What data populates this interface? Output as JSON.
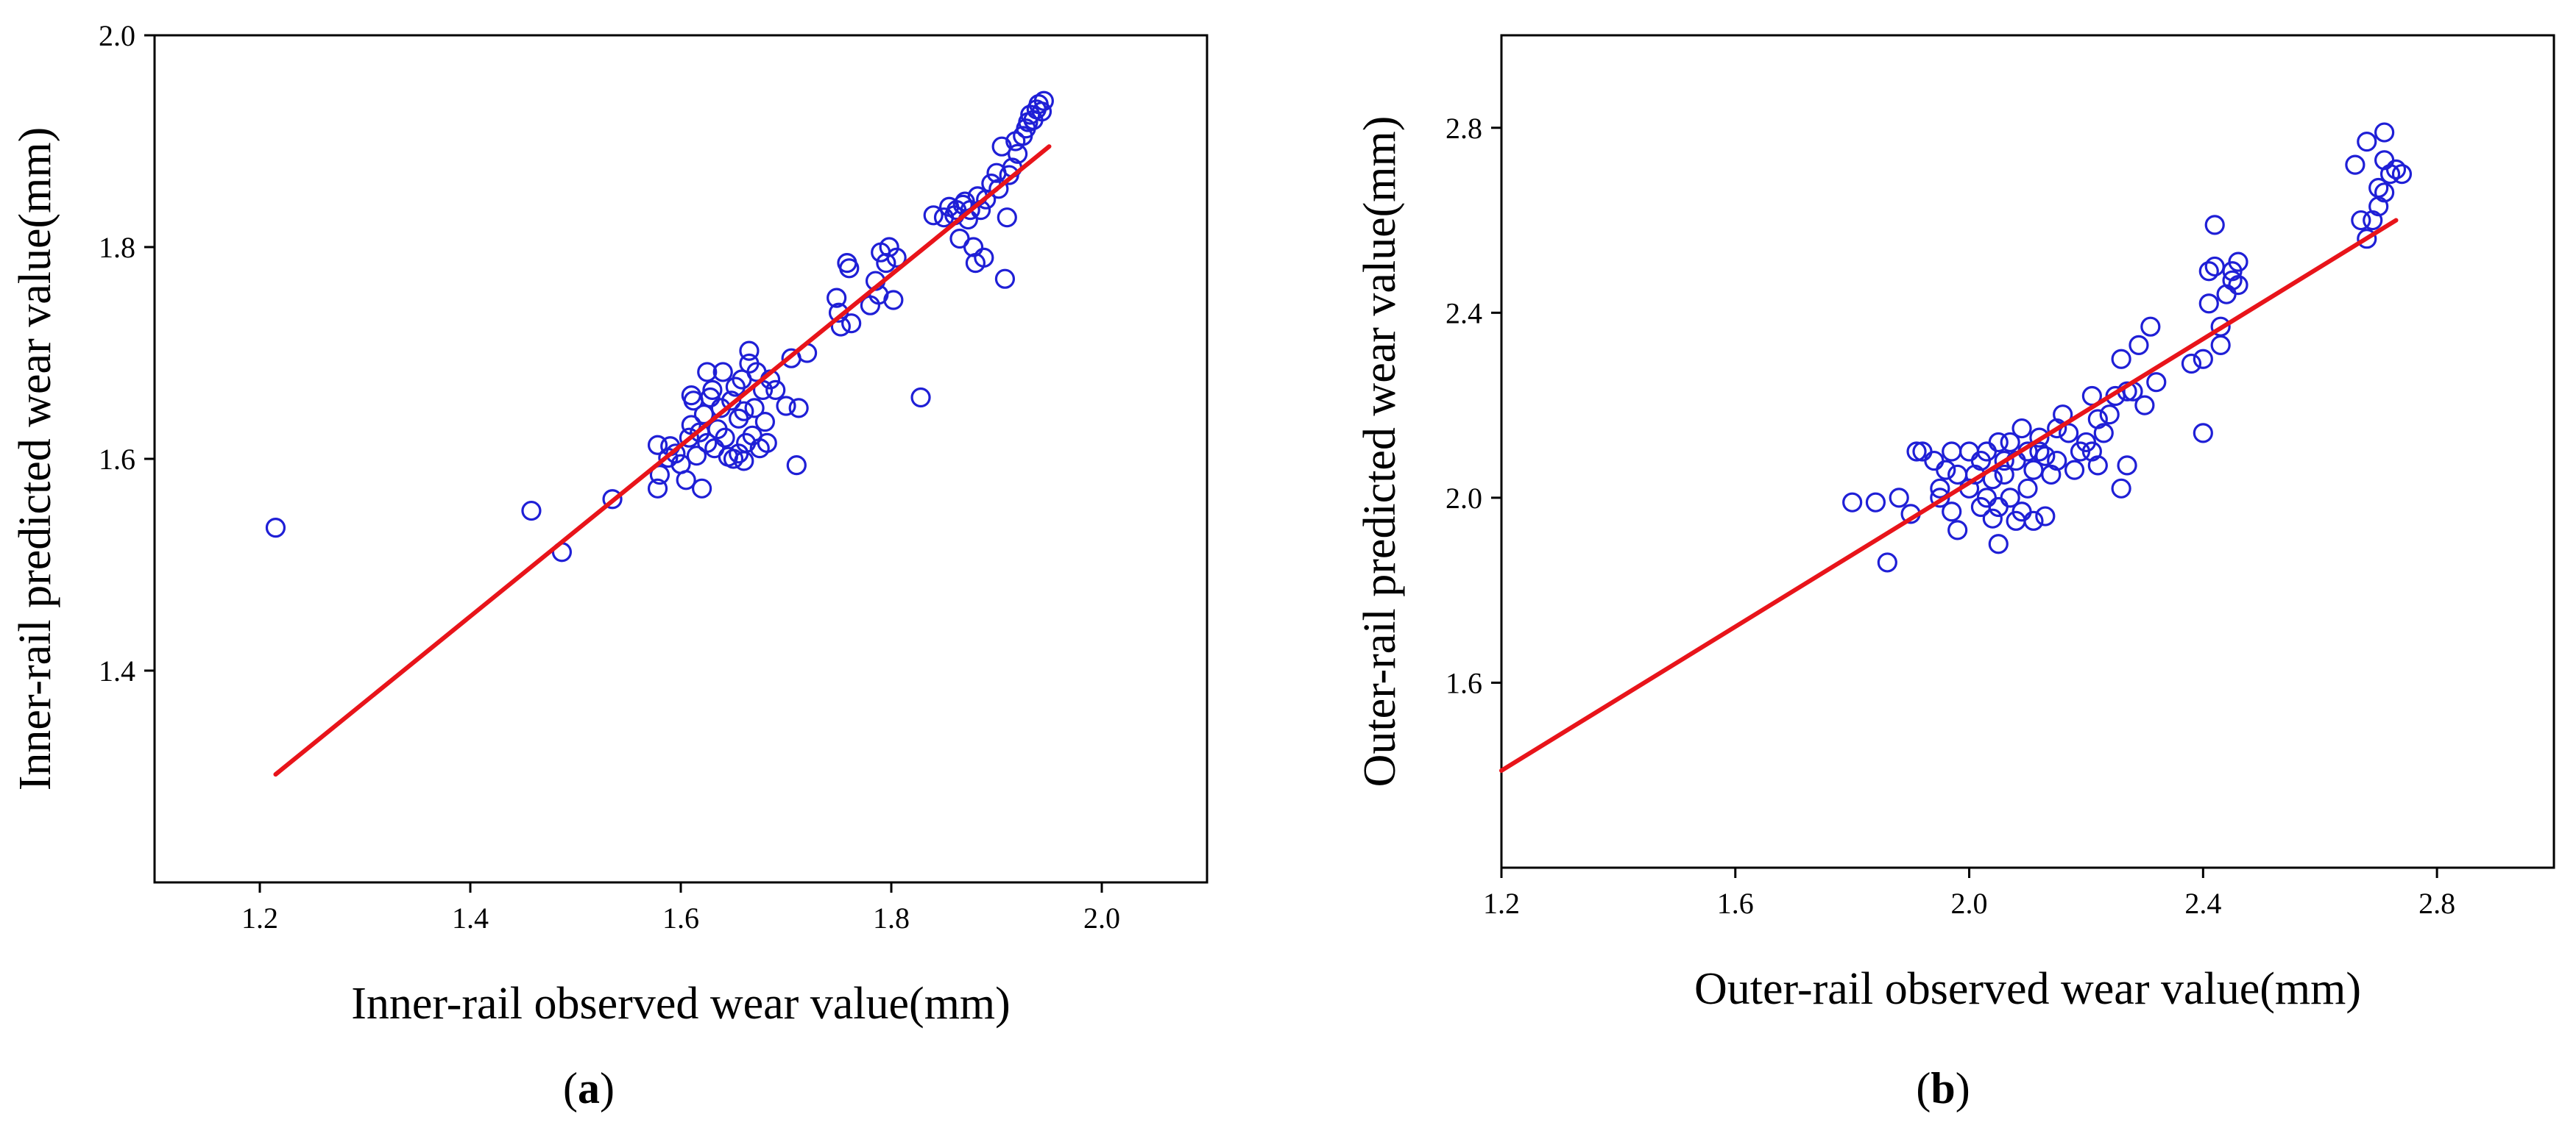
{
  "figure": {
    "captions": [
      {
        "open": "(",
        "letter": "a",
        "close": ")"
      },
      {
        "open": "(",
        "letter": "b",
        "close": ")"
      }
    ]
  },
  "chart_data": [
    {
      "type": "scatter",
      "title": "",
      "xlabel": "Inner-rail observed wear value(mm)",
      "ylabel": "Inner-rail predicted wear value(mm)",
      "xlim": [
        1.1,
        2.1
      ],
      "ylim": [
        1.2,
        2.0
      ],
      "xticks": [
        "1.2",
        "1.4",
        "1.6",
        "1.8",
        "2.0"
      ],
      "yticks": [
        "1.4",
        "1.6",
        "1.8",
        "2.0"
      ],
      "marker_color": "#1f1fd6",
      "line_color": "#e8141a",
      "fit_line": {
        "x": [
          1.215,
          1.95
        ],
        "y": [
          1.302,
          1.895
        ]
      },
      "points": [
        [
          1.215,
          1.535
        ],
        [
          1.458,
          1.551
        ],
        [
          1.487,
          1.512
        ],
        [
          1.535,
          1.562
        ],
        [
          1.578,
          1.572
        ],
        [
          1.58,
          1.585
        ],
        [
          1.578,
          1.613
        ],
        [
          1.588,
          1.601
        ],
        [
          1.59,
          1.612
        ],
        [
          1.595,
          1.605
        ],
        [
          1.6,
          1.595
        ],
        [
          1.605,
          1.58
        ],
        [
          1.608,
          1.62
        ],
        [
          1.61,
          1.632
        ],
        [
          1.612,
          1.655
        ],
        [
          1.61,
          1.66
        ],
        [
          1.615,
          1.603
        ],
        [
          1.618,
          1.625
        ],
        [
          1.62,
          1.572
        ],
        [
          1.622,
          1.642
        ],
        [
          1.625,
          1.682
        ],
        [
          1.625,
          1.615
        ],
        [
          1.628,
          1.658
        ],
        [
          1.63,
          1.665
        ],
        [
          1.632,
          1.61
        ],
        [
          1.635,
          1.628
        ],
        [
          1.638,
          1.648
        ],
        [
          1.64,
          1.682
        ],
        [
          1.642,
          1.62
        ],
        [
          1.645,
          1.602
        ],
        [
          1.648,
          1.655
        ],
        [
          1.65,
          1.6
        ],
        [
          1.652,
          1.668
        ],
        [
          1.655,
          1.638
        ],
        [
          1.655,
          1.605
        ],
        [
          1.658,
          1.675
        ],
        [
          1.66,
          1.598
        ],
        [
          1.66,
          1.645
        ],
        [
          1.662,
          1.615
        ],
        [
          1.665,
          1.69
        ],
        [
          1.665,
          1.702
        ],
        [
          1.668,
          1.622
        ],
        [
          1.67,
          1.648
        ],
        [
          1.672,
          1.682
        ],
        [
          1.675,
          1.61
        ],
        [
          1.678,
          1.665
        ],
        [
          1.68,
          1.635
        ],
        [
          1.682,
          1.615
        ],
        [
          1.685,
          1.675
        ],
        [
          1.69,
          1.665
        ],
        [
          1.7,
          1.65
        ],
        [
          1.705,
          1.695
        ],
        [
          1.71,
          1.594
        ],
        [
          1.712,
          1.648
        ],
        [
          1.72,
          1.7
        ],
        [
          1.748,
          1.752
        ],
        [
          1.75,
          1.738
        ],
        [
          1.752,
          1.725
        ],
        [
          1.758,
          1.785
        ],
        [
          1.76,
          1.78
        ],
        [
          1.762,
          1.728
        ],
        [
          1.78,
          1.745
        ],
        [
          1.785,
          1.768
        ],
        [
          1.788,
          1.755
        ],
        [
          1.79,
          1.795
        ],
        [
          1.795,
          1.785
        ],
        [
          1.798,
          1.8
        ],
        [
          1.802,
          1.75
        ],
        [
          1.805,
          1.79
        ],
        [
          1.828,
          1.658
        ],
        [
          1.84,
          1.83
        ],
        [
          1.85,
          1.828
        ],
        [
          1.855,
          1.838
        ],
        [
          1.86,
          1.83
        ],
        [
          1.862,
          1.835
        ],
        [
          1.865,
          1.808
        ],
        [
          1.868,
          1.84
        ],
        [
          1.87,
          1.843
        ],
        [
          1.873,
          1.826
        ],
        [
          1.875,
          1.835
        ],
        [
          1.878,
          1.8
        ],
        [
          1.88,
          1.785
        ],
        [
          1.882,
          1.848
        ],
        [
          1.885,
          1.835
        ],
        [
          1.888,
          1.79
        ],
        [
          1.89,
          1.845
        ],
        [
          1.895,
          1.86
        ],
        [
          1.9,
          1.87
        ],
        [
          1.902,
          1.855
        ],
        [
          1.905,
          1.895
        ],
        [
          1.908,
          1.77
        ],
        [
          1.91,
          1.828
        ],
        [
          1.912,
          1.868
        ],
        [
          1.915,
          1.875
        ],
        [
          1.918,
          1.9
        ],
        [
          1.92,
          1.888
        ],
        [
          1.925,
          1.905
        ],
        [
          1.928,
          1.912
        ],
        [
          1.93,
          1.918
        ],
        [
          1.932,
          1.925
        ],
        [
          1.935,
          1.92
        ],
        [
          1.938,
          1.93
        ],
        [
          1.94,
          1.935
        ],
        [
          1.943,
          1.928
        ],
        [
          1.945,
          1.938
        ]
      ]
    },
    {
      "type": "scatter",
      "title": "",
      "xlabel": "Outer-rail observed wear value(mm)",
      "ylabel": "Outer-rail predicted wear value(mm)",
      "xlim": [
        1.2,
        3.0
      ],
      "ylim": [
        1.2,
        3.0
      ],
      "xticks": [
        "1.2",
        "1.6",
        "2.0",
        "2.4",
        "2.8"
      ],
      "yticks": [
        "1.6",
        "2.0",
        "2.4",
        "2.8"
      ],
      "marker_color": "#1f1fd6",
      "line_color": "#e8141a",
      "fit_line": {
        "x": [
          1.2,
          2.73
        ],
        "y": [
          1.41,
          2.6
        ]
      },
      "points": [
        [
          1.8,
          1.99
        ],
        [
          1.84,
          1.99
        ],
        [
          1.86,
          1.86
        ],
        [
          1.88,
          2.0
        ],
        [
          1.9,
          1.965
        ],
        [
          1.91,
          2.1
        ],
        [
          1.92,
          2.1
        ],
        [
          1.94,
          2.08
        ],
        [
          1.95,
          2.0
        ],
        [
          1.95,
          2.02
        ],
        [
          1.96,
          2.06
        ],
        [
          1.97,
          1.97
        ],
        [
          1.97,
          2.1
        ],
        [
          1.98,
          1.93
        ],
        [
          1.98,
          2.05
        ],
        [
          2.0,
          2.02
        ],
        [
          2.0,
          2.1
        ],
        [
          2.01,
          2.05
        ],
        [
          2.02,
          1.98
        ],
        [
          2.02,
          2.08
        ],
        [
          2.03,
          2.0
        ],
        [
          2.03,
          2.1
        ],
        [
          2.04,
          1.955
        ],
        [
          2.04,
          2.04
        ],
        [
          2.05,
          1.9
        ],
        [
          2.05,
          1.98
        ],
        [
          2.05,
          2.12
        ],
        [
          2.06,
          2.05
        ],
        [
          2.06,
          2.08
        ],
        [
          2.07,
          2.0
        ],
        [
          2.07,
          2.12
        ],
        [
          2.08,
          1.95
        ],
        [
          2.08,
          2.08
        ],
        [
          2.09,
          2.15
        ],
        [
          2.09,
          1.97
        ],
        [
          2.1,
          2.02
        ],
        [
          2.1,
          2.1
        ],
        [
          2.11,
          1.95
        ],
        [
          2.11,
          2.06
        ],
        [
          2.12,
          2.1
        ],
        [
          2.12,
          2.13
        ],
        [
          2.13,
          2.09
        ],
        [
          2.13,
          1.96
        ],
        [
          2.14,
          2.05
        ],
        [
          2.15,
          2.15
        ],
        [
          2.15,
          2.08
        ],
        [
          2.16,
          2.18
        ],
        [
          2.17,
          2.14
        ],
        [
          2.18,
          2.06
        ],
        [
          2.19,
          2.1
        ],
        [
          2.2,
          2.12
        ],
        [
          2.21,
          2.1
        ],
        [
          2.21,
          2.22
        ],
        [
          2.22,
          2.17
        ],
        [
          2.22,
          2.07
        ],
        [
          2.23,
          2.14
        ],
        [
          2.24,
          2.18
        ],
        [
          2.25,
          2.22
        ],
        [
          2.26,
          2.02
        ],
        [
          2.26,
          2.3
        ],
        [
          2.27,
          2.23
        ],
        [
          2.27,
          2.07
        ],
        [
          2.28,
          2.23
        ],
        [
          2.29,
          2.33
        ],
        [
          2.3,
          2.2
        ],
        [
          2.31,
          2.37
        ],
        [
          2.32,
          2.25
        ],
        [
          2.38,
          2.29
        ],
        [
          2.4,
          2.3
        ],
        [
          2.4,
          2.14
        ],
        [
          2.41,
          2.42
        ],
        [
          2.41,
          2.49
        ],
        [
          2.42,
          2.59
        ],
        [
          2.42,
          2.5
        ],
        [
          2.43,
          2.33
        ],
        [
          2.43,
          2.37
        ],
        [
          2.44,
          2.44
        ],
        [
          2.45,
          2.49
        ],
        [
          2.45,
          2.47
        ],
        [
          2.46,
          2.51
        ],
        [
          2.46,
          2.46
        ],
        [
          2.66,
          2.72
        ],
        [
          2.67,
          2.6
        ],
        [
          2.68,
          2.56
        ],
        [
          2.68,
          2.77
        ],
        [
          2.69,
          2.6
        ],
        [
          2.7,
          2.63
        ],
        [
          2.7,
          2.67
        ],
        [
          2.71,
          2.66
        ],
        [
          2.71,
          2.73
        ],
        [
          2.71,
          2.79
        ],
        [
          2.72,
          2.7
        ],
        [
          2.73,
          2.71
        ],
        [
          2.74,
          2.7
        ]
      ]
    }
  ]
}
